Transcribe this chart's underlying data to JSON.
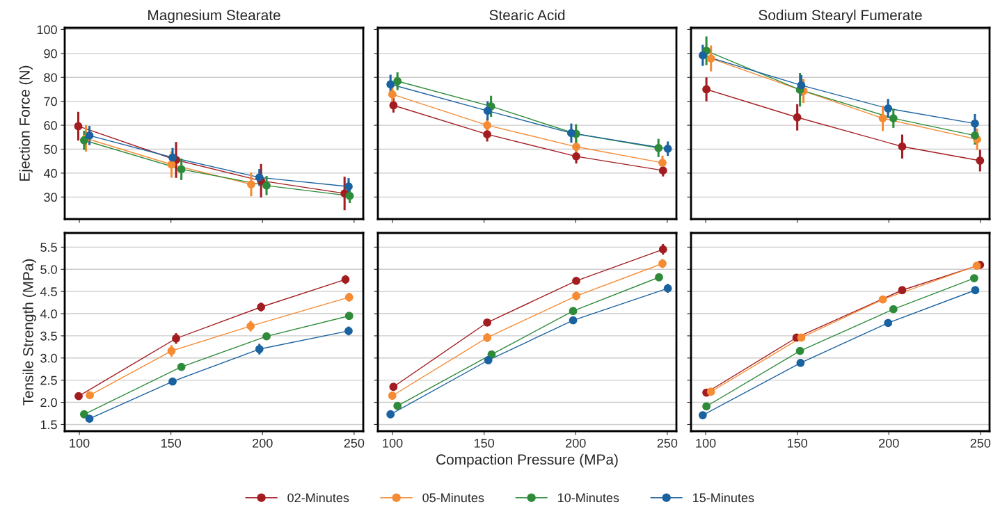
{
  "chart_data": [
    {
      "type": "line",
      "title": "Magnesium Stearate",
      "ylabel": "Ejection Force (N)",
      "xlim": [
        92,
        255
      ],
      "ylim": [
        20.8,
        100.7
      ],
      "xticks": [
        100,
        150,
        200,
        250
      ],
      "yticks": [
        30,
        40,
        50,
        60,
        70,
        80,
        90,
        100
      ],
      "grid": "y",
      "tick_labels": "y",
      "marker": "circle",
      "legend": "bottom",
      "series": [
        {
          "name": "02-Minutes",
          "color": "#a31d20",
          "x": [
            99.4,
            152.8,
            199.2,
            244.8
          ],
          "values": [
            59.6,
            45.5,
            36.8,
            31.5
          ],
          "errors": [
            6,
            7.5,
            7,
            7
          ]
        },
        {
          "name": "05-Minutes",
          "color": "#f58b33",
          "x": [
            103.6,
            150.3,
            193.8,
            null
          ],
          "values": [
            54.5,
            43.6,
            35.3,
            null
          ],
          "errors": [
            5.5,
            5.5,
            5,
            null
          ]
        },
        {
          "name": "10-Minutes",
          "color": "#2e8b3a",
          "x": [
            102.6,
            155.7,
            202.2,
            247.6
          ],
          "values": [
            53.7,
            41.6,
            34.8,
            30.5
          ],
          "errors": [
            4,
            4.5,
            4,
            3
          ]
        },
        {
          "name": "15-Minutes",
          "color": "#1a62a0",
          "x": [
            105.5,
            150.9,
            198.3,
            247
          ],
          "values": [
            55.7,
            46.5,
            38.2,
            34.4
          ],
          "errors": [
            4,
            4,
            3.5,
            3.5
          ]
        }
      ]
    },
    {
      "type": "line",
      "title": "Stearic Acid",
      "xlim": [
        92,
        255
      ],
      "ylim": [
        20.8,
        100.7
      ],
      "xticks": [
        100,
        150,
        200,
        250
      ],
      "yticks": [
        30,
        40,
        50,
        60,
        70,
        80,
        90,
        100
      ],
      "grid": "y",
      "tick_labels": false,
      "marker": "circle",
      "series": [
        {
          "color": "#a31d20",
          "x": [
            100.5,
            151.7,
            200.3,
            247.7
          ],
          "values": [
            68.3,
            56.2,
            47.0,
            41.1
          ],
          "errors": [
            3,
            3,
            3,
            2.5
          ]
        },
        {
          "color": "#f58b33",
          "x": [
            99.9,
            151.7,
            200.3,
            247.4
          ],
          "values": [
            72.9,
            60.0,
            51.0,
            44.3
          ],
          "errors": [
            3.5,
            3,
            [
              48.5,
              54
            ],
            3
          ]
        },
        {
          "color": "#2e8b3a",
          "x": [
            102.7,
            153.8,
            200.2,
            245.2
          ],
          "values": [
            78.4,
            67.9,
            56.4,
            50.5
          ],
          "errors": [
            3.7,
            4.4,
            4,
            3.8
          ]
        },
        {
          "color": "#1a62a0",
          "x": [
            98.9,
            151.9,
            197.6,
            250.3
          ],
          "values": [
            77.1,
            66.0,
            56.7,
            50.2
          ],
          "errors": [
            4,
            4,
            4,
            3
          ]
        }
      ]
    },
    {
      "type": "line",
      "title": "Sodium Stearyl Fumerate",
      "xlim": [
        92,
        255
      ],
      "ylim": [
        20.8,
        100.7
      ],
      "xticks": [
        100,
        150,
        200,
        250
      ],
      "yticks": [
        30,
        40,
        50,
        60,
        70,
        80,
        90,
        100
      ],
      "grid": "y",
      "tick_labels": false,
      "marker": "circle",
      "series": [
        {
          "color": "#a31d20",
          "x": [
            100.4,
            150.0,
            207.3,
            249.8
          ],
          "values": [
            75.0,
            63.3,
            51.1,
            45.2
          ],
          "errors": [
            5,
            5.5,
            5,
            4.5
          ]
        },
        {
          "color": "#f58b33",
          "x": [
            102.9,
            153.4,
            196.7,
            248.2
          ],
          "values": [
            87.9,
            74.3,
            62.9,
            54.1
          ],
          "errors": [
            5.4,
            5,
            5.3,
            4.5
          ]
        },
        {
          "color": "#2e8b3a",
          "x": [
            100.4,
            151.5,
            202.5,
            247.0
          ],
          "values": [
            91.1,
            74.8,
            62.9,
            55.7
          ],
          "errors": [
            6,
            7,
            4,
            3.8
          ]
        },
        {
          "color": "#1a62a0",
          "x": [
            98.4,
            152.2,
            199.6,
            247.0
          ],
          "values": [
            89.2,
            76.7,
            67.0,
            60.7
          ],
          "errors": [
            4.4,
            4.3,
            4,
            4
          ]
        }
      ]
    },
    {
      "type": "line",
      "ylabel": "Tensile Strength (MPa)",
      "xlim": [
        92,
        255
      ],
      "ylim": [
        1.35,
        5.82
      ],
      "xticks": [
        100,
        150,
        200,
        250
      ],
      "yticks": [
        1.5,
        {
          "value": 2,
          "label": "2.0"
        },
        2.5,
        {
          "value": 3,
          "label": "3.0"
        },
        3.5,
        {
          "value": 4,
          "label": "4.0"
        },
        4.5,
        {
          "value": 5,
          "label": "5.0"
        },
        5.5
      ],
      "grid": "y",
      "marker": "circle",
      "series": [
        {
          "color": "#a31d20",
          "x": [
            99.6,
            152.8,
            199.2,
            245.3
          ],
          "values": [
            2.14,
            3.44,
            4.15,
            4.77
          ],
          "errors": [
            null,
            0.12,
            0.1,
            0.1
          ]
        },
        {
          "color": "#f58b33",
          "x": [
            105.7,
            150.3,
            193.5,
            247.3
          ],
          "values": [
            2.16,
            3.16,
            3.72,
            4.37
          ],
          "errors": [
            null,
            0.13,
            0.12,
            0.1
          ]
        },
        {
          "color": "#2e8b3a",
          "x": [
            102.6,
            155.7,
            202.2,
            247.3
          ],
          "values": [
            1.73,
            2.8,
            3.49,
            3.95
          ],
          "errors": [
            null,
            null,
            0.08,
            0.08
          ]
        },
        {
          "color": "#1a62a0",
          "x": [
            105.5,
            150.9,
            198.3,
            247
          ],
          "values": [
            1.63,
            2.47,
            3.2,
            3.61
          ],
          "errors": [
            null,
            null,
            0.12,
            0.1
          ]
        }
      ]
    },
    {
      "type": "line",
      "xlabel": "Compaction Pressure (MPa)",
      "xlim": [
        92,
        255
      ],
      "ylim": [
        1.35,
        5.82
      ],
      "xticks": [
        100,
        150,
        200,
        250
      ],
      "yticks": [
        1.5,
        2,
        2.5,
        3,
        3.5,
        4,
        4.5,
        5,
        5.5
      ],
      "grid": "y",
      "tick_labels": "x",
      "marker": "circle",
      "series": [
        {
          "color": "#a31d20",
          "x": [
            100.5,
            151.7,
            200.3,
            247.7
          ],
          "values": [
            2.35,
            3.8,
            4.74,
            5.45
          ],
          "errors": [
            0.07,
            0.08,
            0.08,
            0.12
          ]
        },
        {
          "color": "#f58b33",
          "x": [
            99.9,
            151.7,
            200.3,
            247.4
          ],
          "values": [
            2.15,
            3.46,
            4.4,
            5.13
          ],
          "errors": [
            null,
            0.1,
            0.1,
            0.1
          ]
        },
        {
          "color": "#2e8b3a",
          "x": [
            102.7,
            154.1,
            198.6,
            245.5
          ],
          "values": [
            1.92,
            3.08,
            4.06,
            4.82
          ],
          "errors": [
            null,
            null,
            0.08,
            0.08
          ]
        },
        {
          "color": "#1a62a0",
          "x": [
            98.9,
            152.3,
            198.6,
            250.3
          ],
          "values": [
            1.73,
            2.95,
            3.85,
            4.57
          ],
          "errors": [
            null,
            0.08,
            null,
            0.1
          ]
        }
      ]
    },
    {
      "type": "line",
      "xlim": [
        92,
        255
      ],
      "ylim": [
        1.35,
        5.82
      ],
      "xticks": [
        100,
        150,
        200,
        250
      ],
      "yticks": [
        1.5,
        2,
        2.5,
        3,
        3.5,
        4,
        4.5,
        5,
        5.5
      ],
      "grid": "y",
      "tick_labels": "x",
      "marker": "circle",
      "series": [
        {
          "color": "#a31d20",
          "x": [
            100.4,
            149.6,
            207.3,
            249.8
          ],
          "values": [
            2.22,
            3.46,
            4.53,
            5.1
          ],
          "errors": [
            0.05,
            0.08,
            0.08,
            0.08
          ]
        },
        {
          "color": "#f58b33",
          "x": [
            102.9,
            152.2,
            196.7,
            248.0
          ],
          "values": [
            2.24,
            3.46,
            4.32,
            5.08
          ]
        },
        {
          "color": "#2e8b3a",
          "x": [
            100.4,
            151.5,
            202.5,
            246.6
          ],
          "values": [
            1.91,
            3.16,
            4.1,
            4.8
          ]
        },
        {
          "color": "#1a62a0",
          "x": [
            98.4,
            151.8,
            199.6,
            247.2
          ],
          "values": [
            1.71,
            2.89,
            3.79,
            4.53
          ]
        }
      ]
    }
  ]
}
